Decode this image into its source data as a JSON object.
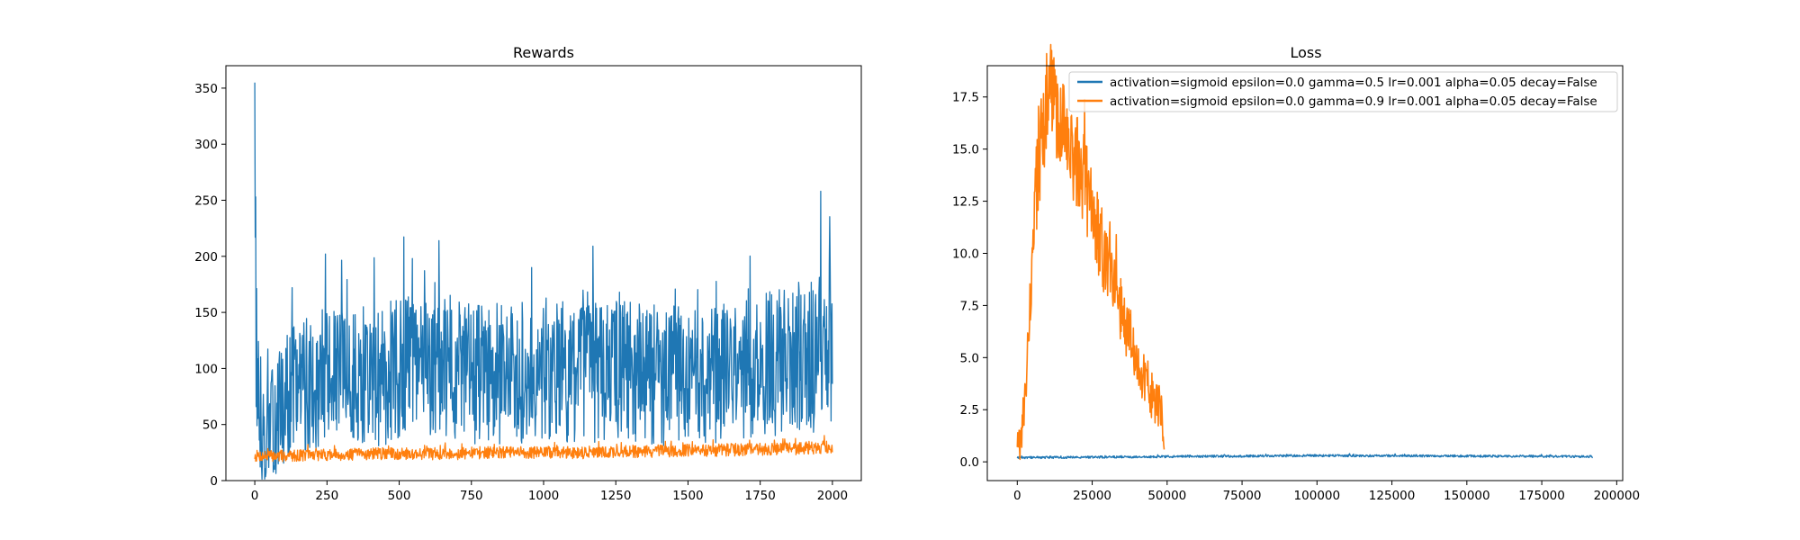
{
  "chart_data": [
    {
      "type": "line",
      "title": "Rewards",
      "xlabel": "",
      "ylabel": "",
      "xlim": [
        -100,
        2100
      ],
      "ylim": [
        0,
        370
      ],
      "xticks": [
        0,
        250,
        500,
        750,
        1000,
        1250,
        1500,
        1750,
        2000
      ],
      "yticks": [
        0,
        50,
        100,
        150,
        200,
        250,
        300,
        350
      ],
      "grid": false,
      "legend": "none",
      "series": [
        {
          "color": "#1f77b4",
          "x": [
            0,
            5,
            10,
            20,
            40,
            60,
            80,
            100,
            120,
            150,
            200,
            250,
            300,
            350,
            400,
            450,
            500,
            550,
            600,
            650,
            700,
            750,
            800,
            850,
            900,
            950,
            1000,
            1050,
            1100,
            1150,
            1200,
            1250,
            1300,
            1350,
            1400,
            1450,
            1500,
            1550,
            1600,
            1650,
            1700,
            1750,
            1800,
            1850,
            1900,
            1950,
            2000
          ],
          "values": [
            355,
            120,
            80,
            45,
            42,
            50,
            60,
            70,
            80,
            85,
            88,
            92,
            90,
            93,
            92,
            95,
            100,
            102,
            100,
            98,
            96,
            95,
            95,
            96,
            97,
            98,
            100,
            99,
            98,
            97,
            98,
            99,
            96,
            95,
            94,
            95,
            92,
            93,
            95,
            97,
            100,
            102,
            105,
            108,
            110,
            112,
            115
          ],
          "peaks": [
            [
              0,
              355
            ],
            [
              130,
              172
            ],
            [
              245,
              202
            ],
            [
              470,
              160
            ],
            [
              545,
              198
            ],
            [
              637,
              214
            ],
            [
              958,
              190
            ],
            [
              1263,
              168
            ],
            [
              1960,
              258
            ]
          ]
        },
        {
          "color": "#ff7f0e",
          "x": [
            0,
            100,
            200,
            300,
            400,
            500,
            600,
            700,
            800,
            900,
            1000,
            1100,
            1200,
            1300,
            1400,
            1500,
            1600,
            1700,
            1800,
            1900,
            2000
          ],
          "values": [
            22,
            22,
            23,
            23,
            24,
            24,
            24,
            24,
            25,
            25,
            25,
            25,
            25,
            26,
            26,
            27,
            27,
            28,
            28,
            29,
            30
          ]
        }
      ]
    },
    {
      "type": "line",
      "title": "Loss",
      "xlabel": "",
      "ylabel": "",
      "xlim": [
        -10000,
        202000
      ],
      "ylim": [
        -0.9,
        19.0
      ],
      "xticks": [
        0,
        25000,
        50000,
        75000,
        100000,
        125000,
        150000,
        175000,
        200000
      ],
      "yticks": [
        0.0,
        2.5,
        5.0,
        7.5,
        10.0,
        12.5,
        15.0,
        17.5
      ],
      "grid": false,
      "legend": "top-right",
      "series": [
        {
          "name": "activation=sigmoid epsilon=0.0 gamma=0.5 lr=0.001 alpha=0.05 decay=False",
          "color": "#1f77b4",
          "x": [
            0,
            50000,
            100000,
            150000,
            192000
          ],
          "values": [
            0.2,
            0.25,
            0.3,
            0.28,
            0.25
          ]
        },
        {
          "name": "activation=sigmoid epsilon=0.0 gamma=0.9 lr=0.001 alpha=0.05 decay=False",
          "color": "#ff7f0e",
          "x": [
            0,
            1000,
            3000,
            5000,
            7000,
            9000,
            11000,
            13000,
            15000,
            18000,
            21000,
            24000,
            27000,
            30000,
            33000,
            36000,
            39000,
            42000,
            45000,
            48000,
            49000
          ],
          "values": [
            1.1,
            0.6,
            4.0,
            10.0,
            14.5,
            16.5,
            18.0,
            17.0,
            16.0,
            15.0,
            14.0,
            12.5,
            11.0,
            9.5,
            8.0,
            6.5,
            5.2,
            4.0,
            3.0,
            2.5,
            0.0
          ]
        }
      ]
    }
  ]
}
